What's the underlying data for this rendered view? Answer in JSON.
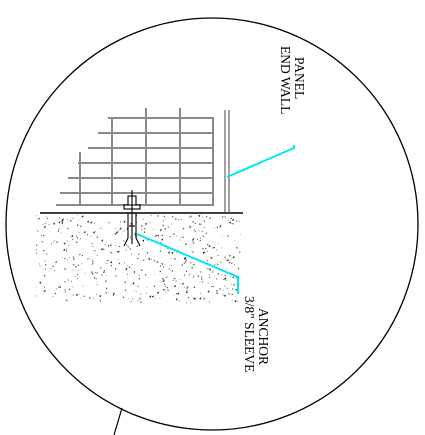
{
  "labels": {
    "panel_line1": "END WALL",
    "panel_line2": "PANEL",
    "anchor_line1": "3/8\" SLEEVE",
    "anchor_line2": "ANCHOR"
  },
  "colors": {
    "outline": "#000000",
    "panel_grid": "#8a8a8a",
    "leader": "#00e5ff",
    "concrete_speckle": "#555555"
  }
}
